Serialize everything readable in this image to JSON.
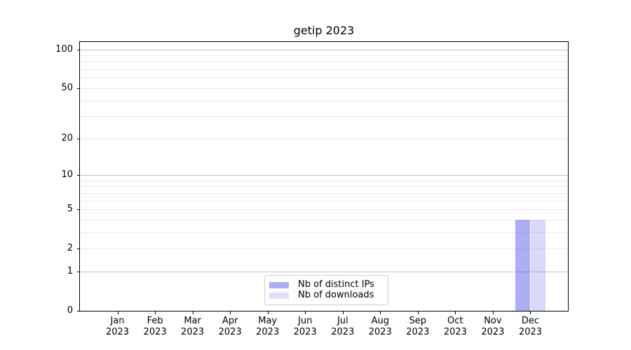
{
  "figure": {
    "title": "getip 2023"
  },
  "chart_data": {
    "type": "bar",
    "title": "getip 2023",
    "categories": [
      "Jan 2023",
      "Feb 2023",
      "Mar 2023",
      "Apr 2023",
      "May 2023",
      "Jun 2023",
      "Jul 2023",
      "Aug 2023",
      "Sep 2023",
      "Oct 2023",
      "Nov 2023",
      "Dec 2023"
    ],
    "series": [
      {
        "name": "Nb of distinct IPs",
        "swatch_color": "#acacf7",
        "fill": "rgba(90,90,240,0.5)",
        "values": [
          0,
          0,
          0,
          0,
          0,
          0,
          0,
          0,
          0,
          0,
          0,
          4
        ]
      },
      {
        "name": "Nb of downloads",
        "swatch_color": "#dedefb",
        "fill": "rgba(90,90,240,0.23)",
        "values": [
          0,
          0,
          0,
          0,
          0,
          0,
          0,
          0,
          0,
          0,
          0,
          4
        ]
      }
    ],
    "xlabel": "",
    "ylabel": "",
    "y_scale": "log1p",
    "ylim": [
      0,
      114
    ],
    "y_ticks": [
      0,
      1,
      2,
      5,
      10,
      20,
      50,
      100
    ],
    "grid": true,
    "grid_major_values": [
      1,
      10,
      100
    ],
    "grid_minor_values": [
      2,
      3,
      4,
      5,
      6,
      7,
      8,
      9,
      20,
      30,
      40,
      50,
      60,
      70,
      80,
      90
    ],
    "bar_width_fraction": 0.4,
    "legend_position": "lower center",
    "legend": [
      {
        "label": "Nb of distinct IPs",
        "swatch_color": "#acacf7"
      },
      {
        "label": "Nb of downloads",
        "swatch_color": "#dedefb"
      }
    ],
    "colors": {
      "grid_major": "#c3c3c3",
      "grid_minor": "#eaeaea",
      "spine": "#000000",
      "text": "#000000"
    }
  }
}
